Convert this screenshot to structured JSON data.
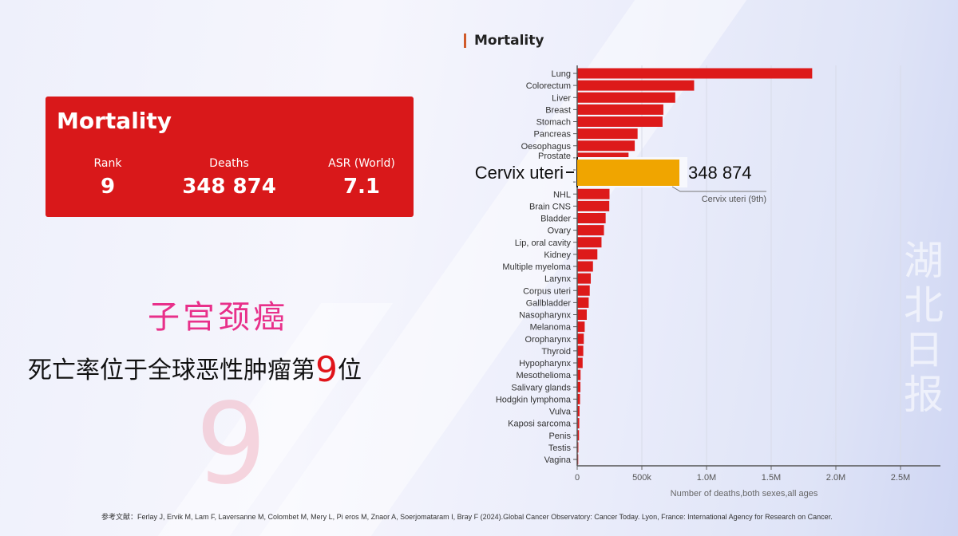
{
  "card": {
    "title": "Mortality",
    "stats": [
      {
        "label": "Rank",
        "value": "9"
      },
      {
        "label": "Deaths",
        "value": "348 874"
      },
      {
        "label": "ASR (World)",
        "value": "7.1"
      }
    ]
  },
  "headline": {
    "title_cn": "子宫颈癌",
    "line_cn_before": "死亡率位于全球恶性肿瘤第",
    "line_cn_num": "9",
    "line_cn_after": "位",
    "bg_number": "9"
  },
  "reference": "参考文献：Ferlay J, Ervik M, Lam F, Laversanne M, Colombet M, Mery L, Pi    eros M, Znaor A, Soerjomataram I, Bray F (2024).Global Cancer Observatory: Cancer Today. Lyon, France: International Agency for Research on Cancer.",
  "watermark": "湖北日报",
  "colors": {
    "bar": "#dd1a1a",
    "highlight": "#f0a500",
    "card": "#d9181a",
    "title_pink": "#e8308a"
  },
  "chart_data": {
    "type": "bar",
    "orientation": "horizontal",
    "title": "Mortality",
    "xlabel": "Number of deaths,both sexes,all ages",
    "xlim": [
      0,
      2800000
    ],
    "xticks": [
      {
        "v": 0,
        "label": "0"
      },
      {
        "v": 500000,
        "label": "500k"
      },
      {
        "v": 1000000,
        "label": "1.0M"
      },
      {
        "v": 1500000,
        "label": "1.5M"
      },
      {
        "v": 2000000,
        "label": "2.0M"
      },
      {
        "v": 2500000,
        "label": "2.5M"
      }
    ],
    "grid": true,
    "categories": [
      "Lung",
      "Colorectum",
      "Liver",
      "Breast",
      "Stomach",
      "Pancreas",
      "Oesophagus",
      "Prostate",
      "Cervix uteri",
      "",
      "NHL",
      "Brain CNS",
      "Bladder",
      "Ovary",
      "Lip, oral cavity",
      "Kidney",
      "Multiple myeloma",
      "Larynx",
      "Corpus uteri",
      "Gallbladder",
      "Nasopharynx",
      "Melanoma",
      "Oropharynx",
      "Thyroid",
      "Hypopharynx",
      "Mesothelioma",
      "Salivary glands",
      "Hodgkin lymphoma",
      "Vulva",
      "Kaposi sarcoma",
      "Penis",
      "Testis",
      "Vagina"
    ],
    "values": [
      1817000,
      904000,
      758000,
      666000,
      660000,
      467000,
      445000,
      397000,
      348874,
      305000,
      250000,
      248000,
      220000,
      207000,
      188000,
      156000,
      122000,
      105000,
      97000,
      89000,
      74000,
      58000,
      51000,
      47000,
      42000,
      26000,
      25000,
      22000,
      18000,
      16000,
      14000,
      9000,
      8000
    ],
    "highlight": {
      "index": 8,
      "label": "Cervix uteri",
      "value_label": "348 874",
      "annotation": "Cervix uteri (9th)"
    }
  }
}
